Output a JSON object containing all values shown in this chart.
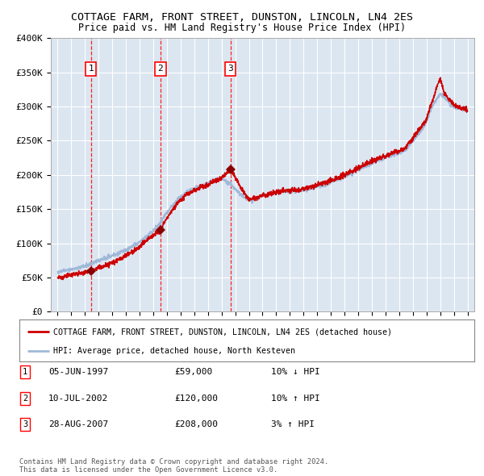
{
  "title": "COTTAGE FARM, FRONT STREET, DUNSTON, LINCOLN, LN4 2ES",
  "subtitle": "Price paid vs. HM Land Registry's House Price Index (HPI)",
  "title_fontsize": 10,
  "subtitle_fontsize": 9,
  "bg_color": "#dce6f1",
  "grid_color": "#ffffff",
  "hpi_color": "#a0b8d8",
  "price_color": "#cc0000",
  "ylim": [
    0,
    400000
  ],
  "yticks": [
    0,
    50000,
    100000,
    150000,
    200000,
    250000,
    300000,
    350000,
    400000
  ],
  "ytick_labels": [
    "£0",
    "£50K",
    "£100K",
    "£150K",
    "£200K",
    "£250K",
    "£300K",
    "£350K",
    "£400K"
  ],
  "xlim_start": 1994.5,
  "xlim_end": 2025.5,
  "xticks": [
    1995,
    1996,
    1997,
    1998,
    1999,
    2000,
    2001,
    2002,
    2003,
    2004,
    2005,
    2006,
    2007,
    2008,
    2009,
    2010,
    2011,
    2012,
    2013,
    2014,
    2015,
    2016,
    2017,
    2018,
    2019,
    2020,
    2021,
    2022,
    2023,
    2024,
    2025
  ],
  "sale_points": [
    {
      "label": "1",
      "date": 1997.43,
      "price": 59000
    },
    {
      "label": "2",
      "date": 2002.53,
      "price": 120000
    },
    {
      "label": "3",
      "date": 2007.65,
      "price": 208000
    }
  ],
  "legend_line1": "COTTAGE FARM, FRONT STREET, DUNSTON, LINCOLN, LN4 2ES (detached house)",
  "legend_line2": "HPI: Average price, detached house, North Kesteven",
  "table_rows": [
    {
      "num": "1",
      "date": "05-JUN-1997",
      "price": "£59,000",
      "hpi": "10% ↓ HPI"
    },
    {
      "num": "2",
      "date": "10-JUL-2002",
      "price": "£120,000",
      "hpi": "10% ↑ HPI"
    },
    {
      "num": "3",
      "date": "28-AUG-2007",
      "price": "£208,000",
      "hpi": "3% ↑ HPI"
    }
  ],
  "footnote": "Contains HM Land Registry data © Crown copyright and database right 2024.\nThis data is licensed under the Open Government Licence v3.0."
}
